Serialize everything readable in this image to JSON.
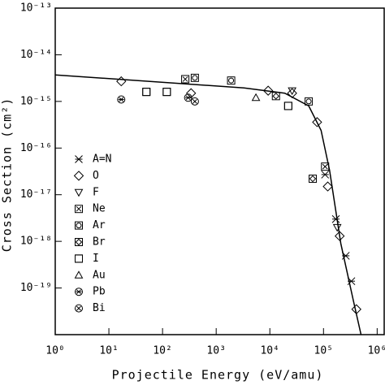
{
  "chart_data": {
    "type": "scatter",
    "x_label": "Projectile Energy (eV/amu)",
    "y_label": "Cross Section (cm²)",
    "log_x": true,
    "log_y": true,
    "xlim": [
      1,
      1400000
    ],
    "ylim": [
      1e-20,
      1e-13
    ],
    "xticks": [
      {
        "value": 1,
        "label": "10⁰"
      },
      {
        "value": 10,
        "label": "10¹"
      },
      {
        "value": 100,
        "label": "10²"
      },
      {
        "value": 1000,
        "label": "10³"
      },
      {
        "value": 10000,
        "label": "10⁴"
      },
      {
        "value": 100000,
        "label": "10⁵"
      },
      {
        "value": 1000000,
        "label": "10⁶"
      }
    ],
    "yticks": [
      {
        "value": 1e-19,
        "label": "10⁻¹⁹"
      },
      {
        "value": 1e-18,
        "label": "10⁻¹⁸"
      },
      {
        "value": 1e-17,
        "label": "10⁻¹⁷"
      },
      {
        "value": 1e-16,
        "label": "10⁻¹⁶"
      },
      {
        "value": 1e-15,
        "label": "10⁻¹⁵"
      },
      {
        "value": 1e-14,
        "label": "10⁻¹⁴"
      },
      {
        "value": 1e-13,
        "label": "10⁻¹³"
      }
    ],
    "legend": "lower left",
    "curve": {
      "x": [
        1,
        3300,
        19000,
        53000,
        90000,
        130000,
        210000,
        360000,
        500000
      ],
      "y": [
        3.7e-15,
        1.95e-15,
        1.5e-15,
        8e-16,
        2.4e-16,
        3.3e-17,
        9e-19,
        5.4e-20,
        1e-20
      ],
      "color": "#000000"
    },
    "series": [
      {
        "name": "A=N",
        "marker": "asterisk",
        "color": "#000000",
        "x": [
          107000,
          170000,
          260000,
          330000
        ],
        "values": [
          2.7e-17,
          3e-18,
          4.9e-19,
          1.4e-19
        ]
      },
      {
        "name": "O",
        "marker": "diamond",
        "color": "#000000",
        "x": [
          17,
          340,
          9300,
          26000,
          76000,
          120000,
          200000,
          410000
        ],
        "values": [
          2.7e-15,
          1.5e-15,
          1.7e-15,
          1.5e-15,
          3.6e-16,
          1.5e-17,
          1.3e-18,
          3.5e-20
        ]
      },
      {
        "name": "F",
        "marker": "triangle-down",
        "color": "#000000",
        "x": [
          26000,
          180000
        ],
        "values": [
          1.7e-15,
          2e-18
        ]
      },
      {
        "name": "Ne",
        "marker": "box-x",
        "color": "#000000",
        "x": [
          265,
          107000
        ],
        "values": [
          3e-15,
          4e-17
        ]
      },
      {
        "name": "Ar",
        "marker": "box-circle",
        "color": "#000000",
        "x": [
          400,
          1900,
          53000
        ],
        "values": [
          3.2e-15,
          2.8e-15,
          1e-15
        ]
      },
      {
        "name": "Br",
        "marker": "box-diamond",
        "color": "#000000",
        "x": [
          63000,
          13000
        ],
        "values": [
          2.2e-17,
          1.3e-15
        ]
      },
      {
        "name": "I",
        "marker": "box",
        "color": "#000000",
        "x": [
          50,
          120,
          22000
        ],
        "values": [
          1.6e-15,
          1.6e-15,
          8e-16
        ]
      },
      {
        "name": "Au",
        "marker": "triangle",
        "color": "#000000",
        "x": [
          5500
        ],
        "values": [
          1.2e-15
        ]
      },
      {
        "name": "Pb",
        "marker": "circle-star",
        "color": "#000000",
        "x": [
          17,
          300
        ],
        "values": [
          1.1e-15,
          1.2e-15
        ]
      },
      {
        "name": "Bi",
        "marker": "circle-x",
        "color": "#000000",
        "x": [
          400
        ],
        "values": [
          1e-15
        ]
      }
    ]
  }
}
